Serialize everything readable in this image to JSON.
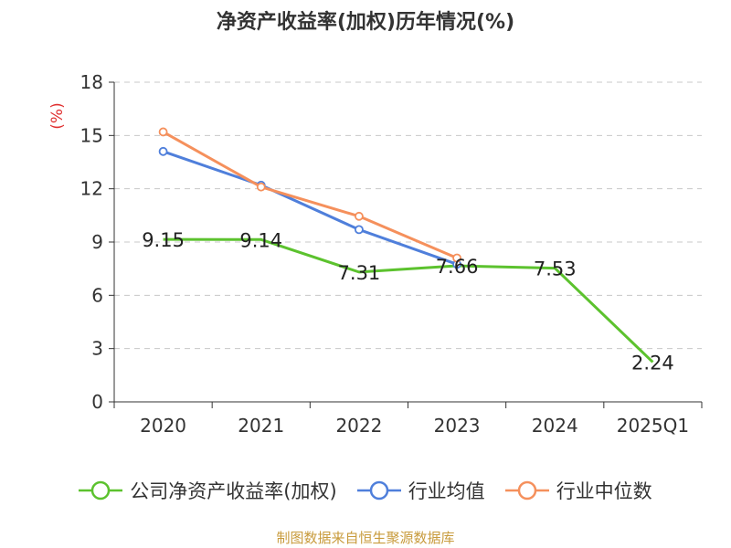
{
  "title": "净资产收益率(加权)历年情况(%)",
  "source": "制图数据来自恒生聚源数据库",
  "chart_data": {
    "type": "line",
    "title": "净资产收益率(加权)历年情况(%)",
    "ylabel": "(%)",
    "xlabel": "",
    "categories": [
      "2020",
      "2021",
      "2022",
      "2023",
      "2024",
      "2025Q1"
    ],
    "ylim": [
      0,
      18
    ],
    "yticks": [
      0,
      3,
      6,
      9,
      12,
      15,
      18
    ],
    "grid": true,
    "legend_position": "bottom",
    "series": [
      {
        "name": "公司净资产收益率(加权)",
        "color": "#5cc22e",
        "values": [
          9.15,
          9.14,
          7.31,
          7.66,
          7.53,
          2.24
        ],
        "labels": [
          "9.15",
          "9.14",
          "7.31",
          "7.66",
          "7.53",
          "2.24"
        ],
        "show_labels": true
      },
      {
        "name": "行业均值",
        "color": "#4f7fdb",
        "values": [
          14.1,
          12.2,
          9.7,
          7.75,
          null,
          null
        ],
        "show_labels": false
      },
      {
        "name": "行业中位数",
        "color": "#f5905c",
        "values": [
          15.2,
          12.1,
          10.45,
          8.1,
          null,
          null
        ],
        "show_labels": false
      }
    ]
  }
}
